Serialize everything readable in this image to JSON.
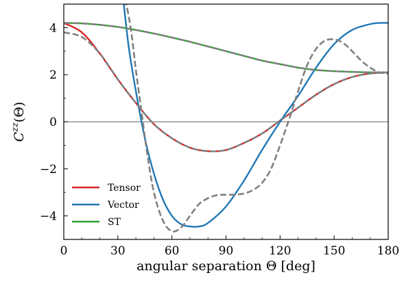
{
  "chart_data": {
    "type": "line",
    "xlabel": "angular separation Θ [deg]",
    "ylabel": "C^zz(Θ)",
    "ylabel_base": "C",
    "ylabel_sup": "zz",
    "ylabel_arg": "(Θ)",
    "xlim": [
      0,
      180
    ],
    "ylim": [
      -5,
      5
    ],
    "xticks": [
      0,
      30,
      60,
      90,
      120,
      150,
      180
    ],
    "yticks": [
      -4,
      -2,
      0,
      2,
      4
    ],
    "yticks_display": [
      "−4",
      "−2",
      "0",
      "2",
      "4"
    ],
    "grid": false,
    "legend_position": "lower-left",
    "series": [
      {
        "name": "Tensor",
        "color": "#d62728",
        "style": "solid",
        "x": [
          0,
          10,
          20,
          30,
          40,
          50,
          60,
          70,
          80,
          90,
          100,
          110,
          120,
          130,
          140,
          150,
          160,
          170,
          180
        ],
        "y": [
          4.2,
          3.8,
          2.9,
          1.8,
          0.8,
          -0.1,
          -0.7,
          -1.1,
          -1.25,
          -1.2,
          -0.9,
          -0.5,
          0.05,
          0.6,
          1.15,
          1.6,
          1.9,
          2.05,
          2.1
        ]
      },
      {
        "name": "Vector",
        "color": "#1f77b4",
        "style": "solid",
        "x": [
          33,
          36,
          40,
          45,
          50,
          55,
          60,
          65,
          70,
          75,
          80,
          90,
          100,
          110,
          120,
          130,
          140,
          150,
          160,
          170,
          175,
          180
        ],
        "y": [
          5.2,
          3.2,
          1.3,
          -0.7,
          -2.2,
          -3.3,
          -4.0,
          -4.35,
          -4.45,
          -4.45,
          -4.3,
          -3.6,
          -2.5,
          -1.2,
          0.0,
          1.1,
          2.3,
          3.3,
          3.9,
          4.15,
          4.2,
          4.2
        ]
      },
      {
        "name": "ST",
        "color": "#2ca02c",
        "style": "solid",
        "x": [
          0,
          10,
          20,
          30,
          40,
          50,
          60,
          70,
          80,
          90,
          100,
          110,
          120,
          130,
          140,
          150,
          160,
          170,
          180
        ],
        "y": [
          4.2,
          4.18,
          4.12,
          4.03,
          3.9,
          3.75,
          3.58,
          3.4,
          3.2,
          3.0,
          2.8,
          2.6,
          2.45,
          2.3,
          2.2,
          2.15,
          2.12,
          2.1,
          2.1
        ]
      },
      {
        "color": "#808080",
        "style": "dashed",
        "x": [
          0,
          10,
          20,
          30,
          40,
          50,
          60,
          70,
          80,
          90,
          100,
          110,
          120,
          130,
          140,
          150,
          160,
          170,
          180
        ],
        "y": [
          3.8,
          3.6,
          2.9,
          1.8,
          0.8,
          -0.1,
          -0.7,
          -1.1,
          -1.25,
          -1.2,
          -0.9,
          -0.5,
          0.05,
          0.6,
          1.15,
          1.6,
          1.9,
          2.05,
          2.1
        ]
      },
      {
        "color": "#808080",
        "style": "dashed",
        "x": [
          0,
          10,
          20,
          30,
          40,
          50,
          60,
          70,
          80,
          90,
          100,
          110,
          120,
          130,
          140,
          150,
          160,
          170,
          180
        ],
        "y": [
          4.2,
          4.18,
          4.12,
          4.03,
          3.9,
          3.75,
          3.58,
          3.4,
          3.2,
          3.0,
          2.8,
          2.6,
          2.45,
          2.3,
          2.2,
          2.15,
          2.12,
          2.1,
          2.1
        ]
      },
      {
        "color": "#808080",
        "style": "dashed",
        "x": [
          34,
          36,
          38,
          40,
          43,
          46,
          50,
          55,
          60,
          65,
          70,
          75,
          80,
          85,
          90,
          95,
          100,
          105,
          110,
          115,
          120,
          125,
          130,
          135,
          140,
          145,
          150,
          155,
          160,
          165,
          170,
          175,
          180
        ],
        "y": [
          5.2,
          4.5,
          3.5,
          2.2,
          0.5,
          -1.2,
          -3.0,
          -4.2,
          -4.65,
          -4.5,
          -4.0,
          -3.5,
          -3.25,
          -3.12,
          -3.1,
          -3.1,
          -3.05,
          -2.9,
          -2.6,
          -2.0,
          -1.0,
          0.1,
          1.3,
          2.4,
          3.1,
          3.45,
          3.5,
          3.35,
          3.0,
          2.6,
          2.3,
          2.1,
          2.05
        ]
      }
    ]
  }
}
